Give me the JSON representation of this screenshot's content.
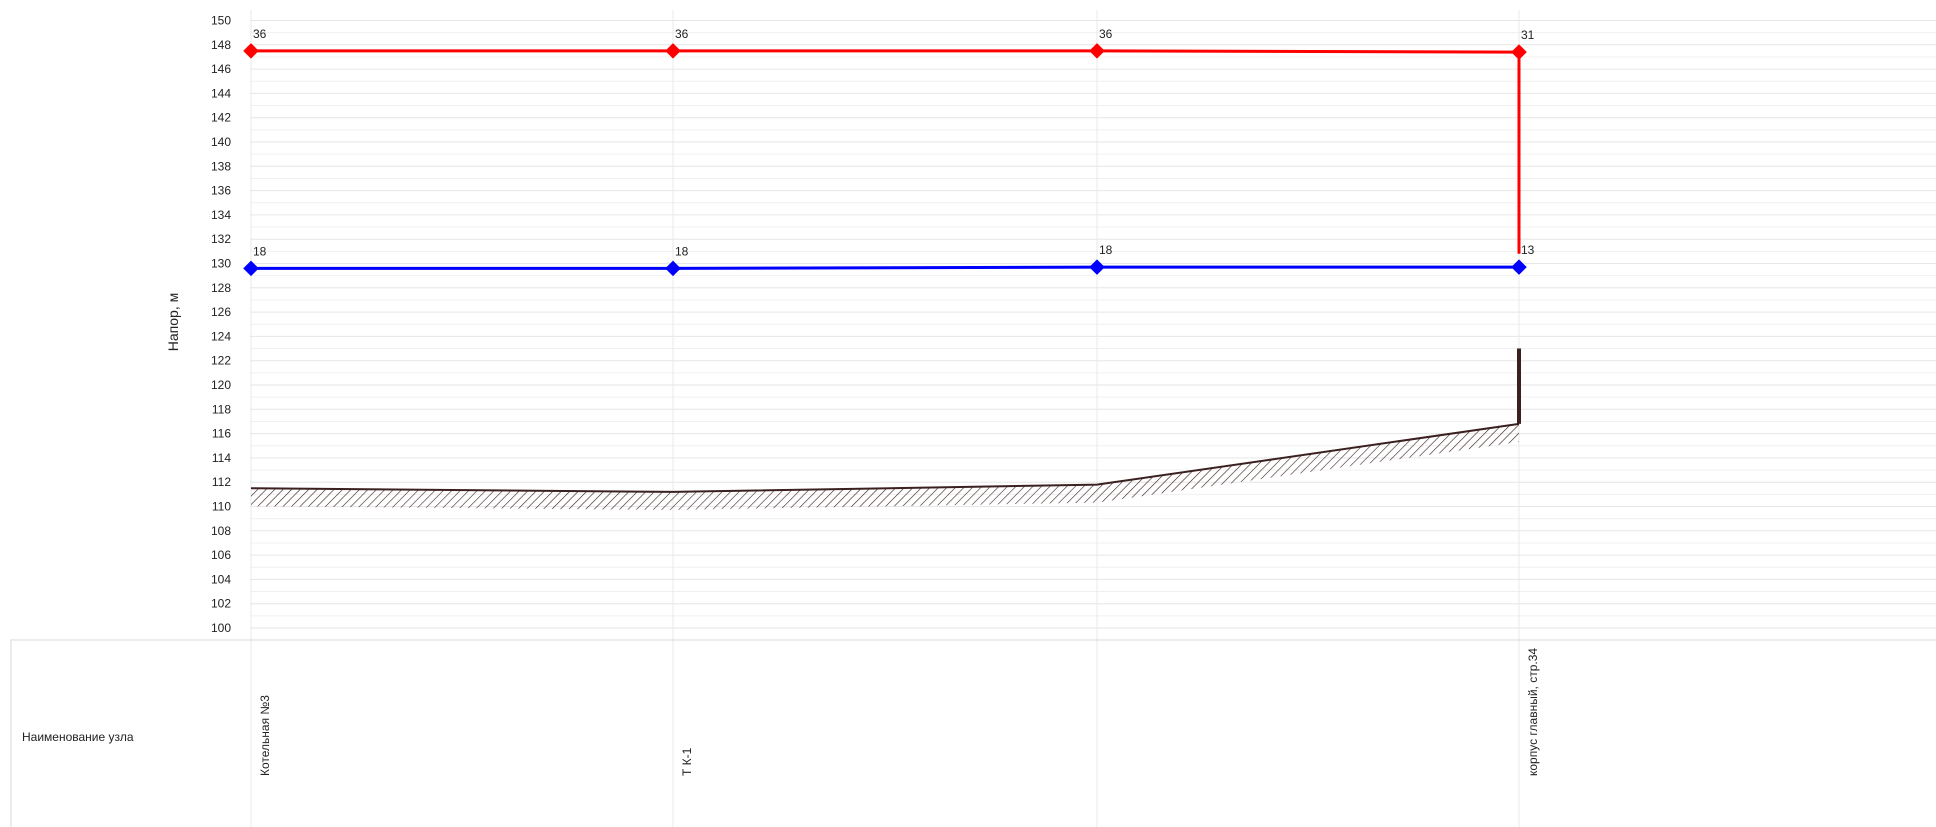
{
  "chart_data": {
    "type": "line",
    "ylabel": "Напор, м",
    "ylim": [
      100,
      150
    ],
    "ytick_step": 2,
    "grid": true,
    "x_nodes": [
      "Котельная №3",
      "Т К-1",
      "",
      "корпус главный, стр.34"
    ],
    "series": [
      {
        "role": "supply",
        "color": "#ff0000",
        "values": [
          147.5,
          147.5,
          147.5,
          147.4
        ],
        "labels": [
          "36",
          "36",
          "36",
          "31"
        ]
      },
      {
        "role": "return",
        "color": "#0000ff",
        "values": [
          129.6,
          129.6,
          129.7,
          129.7
        ],
        "labels": [
          "18",
          "18",
          "18",
          "13"
        ]
      },
      {
        "role": "ground",
        "color": "#3b2020",
        "values": [
          111.5,
          111.2,
          111.8,
          116.8
        ]
      }
    ],
    "building": {
      "node_index": 3,
      "from": 116.8,
      "to": 123
    },
    "supply_drop": {
      "node_index": 3,
      "from": 147.4,
      "to": 130.8
    },
    "table": {
      "row_label": "Наименование узла"
    }
  }
}
